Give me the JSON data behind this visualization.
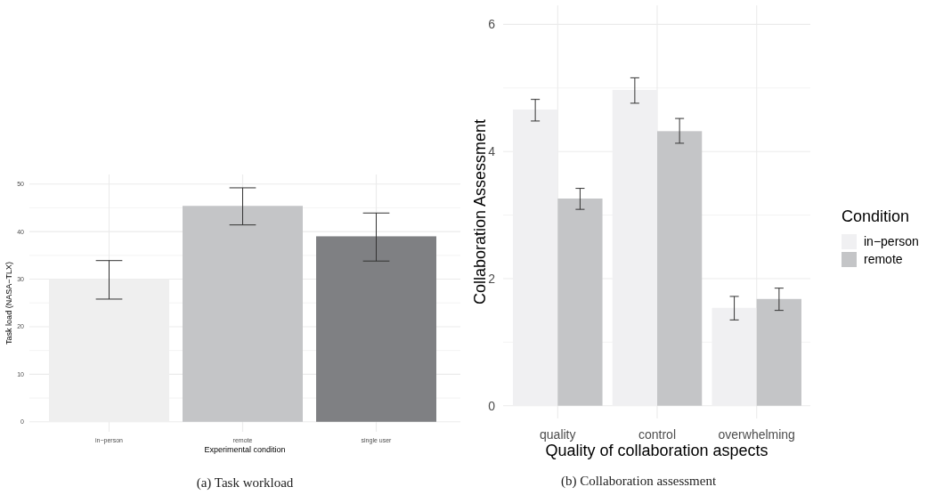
{
  "chart_data": [
    {
      "type": "bar",
      "title": "(a) Task workload",
      "xlabel": "Experimental condition",
      "ylabel": "Task load (NASA−TLX)",
      "categories": [
        "in−person",
        "remote",
        "single user"
      ],
      "series": [
        {
          "colors": [
            "#efefef",
            "#c4c5c7",
            "#7f8083"
          ],
          "values": [
            30,
            45.4,
            39
          ],
          "errors": [
            [
              25.8,
              33.9
            ],
            [
              41.4,
              49.2
            ],
            [
              33.8,
              43.9
            ]
          ]
        }
      ],
      "ylim": [
        -2.1,
        52
      ],
      "yticks": [
        0,
        {
          "value": 5,
          "label": null
        },
        10,
        {
          "value": 15,
          "label": null
        },
        20,
        {
          "value": 25,
          "label": null
        },
        30,
        {
          "value": 35,
          "label": null
        },
        40,
        {
          "value": 45,
          "label": null
        },
        50
      ],
      "grid": true,
      "legend": false
    },
    {
      "type": "bar",
      "title": "(b) Collaboration assessment",
      "xlabel": "Quality of collaboration aspects",
      "ylabel": "Collaboration Assessment",
      "legend_title": "Condition",
      "categories": [
        "quality",
        "control",
        "overwhelming"
      ],
      "series": [
        {
          "name": "in−person",
          "color": "#f0f0f2",
          "values": [
            4.66,
            4.97,
            1.54
          ],
          "errors": [
            [
              4.48,
              4.82
            ],
            [
              4.76,
              5.16
            ],
            [
              1.35,
              1.72
            ]
          ]
        },
        {
          "name": "remote",
          "color": "#c4c5c7",
          "values": [
            3.26,
            4.32,
            1.68
          ],
          "errors": [
            [
              3.09,
              3.42
            ],
            [
              4.13,
              4.52
            ],
            [
              1.5,
              1.85
            ]
          ]
        }
      ],
      "ylim": [
        -0.2,
        6.3
      ],
      "yticks": [
        0,
        {
          "value": 1,
          "label": null
        },
        2,
        {
          "value": 3,
          "label": null
        },
        4,
        {
          "value": 5,
          "label": null
        },
        6
      ],
      "grid": true,
      "legend": "right"
    }
  ]
}
